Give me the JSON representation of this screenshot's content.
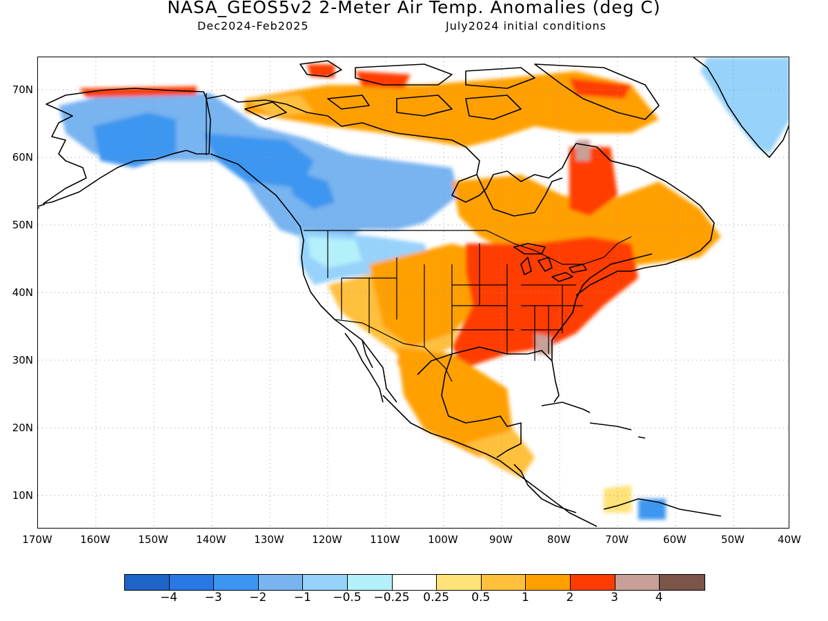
{
  "title": "NASA_GEOS5v2 2-Meter Air Temp. Anomalies (deg C)",
  "subtitle_left": "Dec2024-Feb2025",
  "subtitle_right": "July2024 initial conditions",
  "map": {
    "projection": "equirectangular",
    "lon_range": [
      -170,
      -40
    ],
    "lat_range": [
      5,
      75
    ],
    "gridlines": "dotted",
    "lat_ticks": [
      "70N",
      "60N",
      "50N",
      "40N",
      "30N",
      "20N",
      "10N"
    ],
    "lon_ticks": [
      "170W",
      "160W",
      "150W",
      "140W",
      "130W",
      "120W",
      "110W",
      "100W",
      "90W",
      "80W",
      "70W",
      "60W",
      "50W",
      "40W"
    ],
    "land_outline_color": "#000000",
    "anomaly_regions": [
      {
        "region": "Alaska",
        "category": "-2 to -1"
      },
      {
        "region": "Western Canada",
        "category": "-2 to -1"
      },
      {
        "region": "Pacific Northwest US",
        "category": "-1 to -0.5"
      },
      {
        "region": "Southwest US",
        "category": "0.5 to 2"
      },
      {
        "region": "Southern Plains and Mexico",
        "category": "2 to 3"
      },
      {
        "region": "Eastern US",
        "category": "2 to 3"
      },
      {
        "region": "Eastern Canada",
        "category": "1 to 3"
      },
      {
        "region": "Canadian Arctic Archipelago",
        "category": "1 to 2"
      },
      {
        "region": "Greenland",
        "category": "-1 to -0.5"
      }
    ]
  },
  "colorbar": {
    "colors": [
      "#1e64c8",
      "#2878e6",
      "#3c96f0",
      "#78b4f0",
      "#96d2fa",
      "#b4f0fa",
      "#ffffff",
      "#ffe278",
      "#ffc03c",
      "#ffa000",
      "#ff3c00",
      "#c8a098",
      "#7a5548"
    ],
    "tick_labels": [
      "-4",
      "-3",
      "-2",
      "-1",
      "-0.5",
      "-0.25",
      "0.25",
      "0.5",
      "1",
      "2",
      "3",
      "4"
    ]
  }
}
